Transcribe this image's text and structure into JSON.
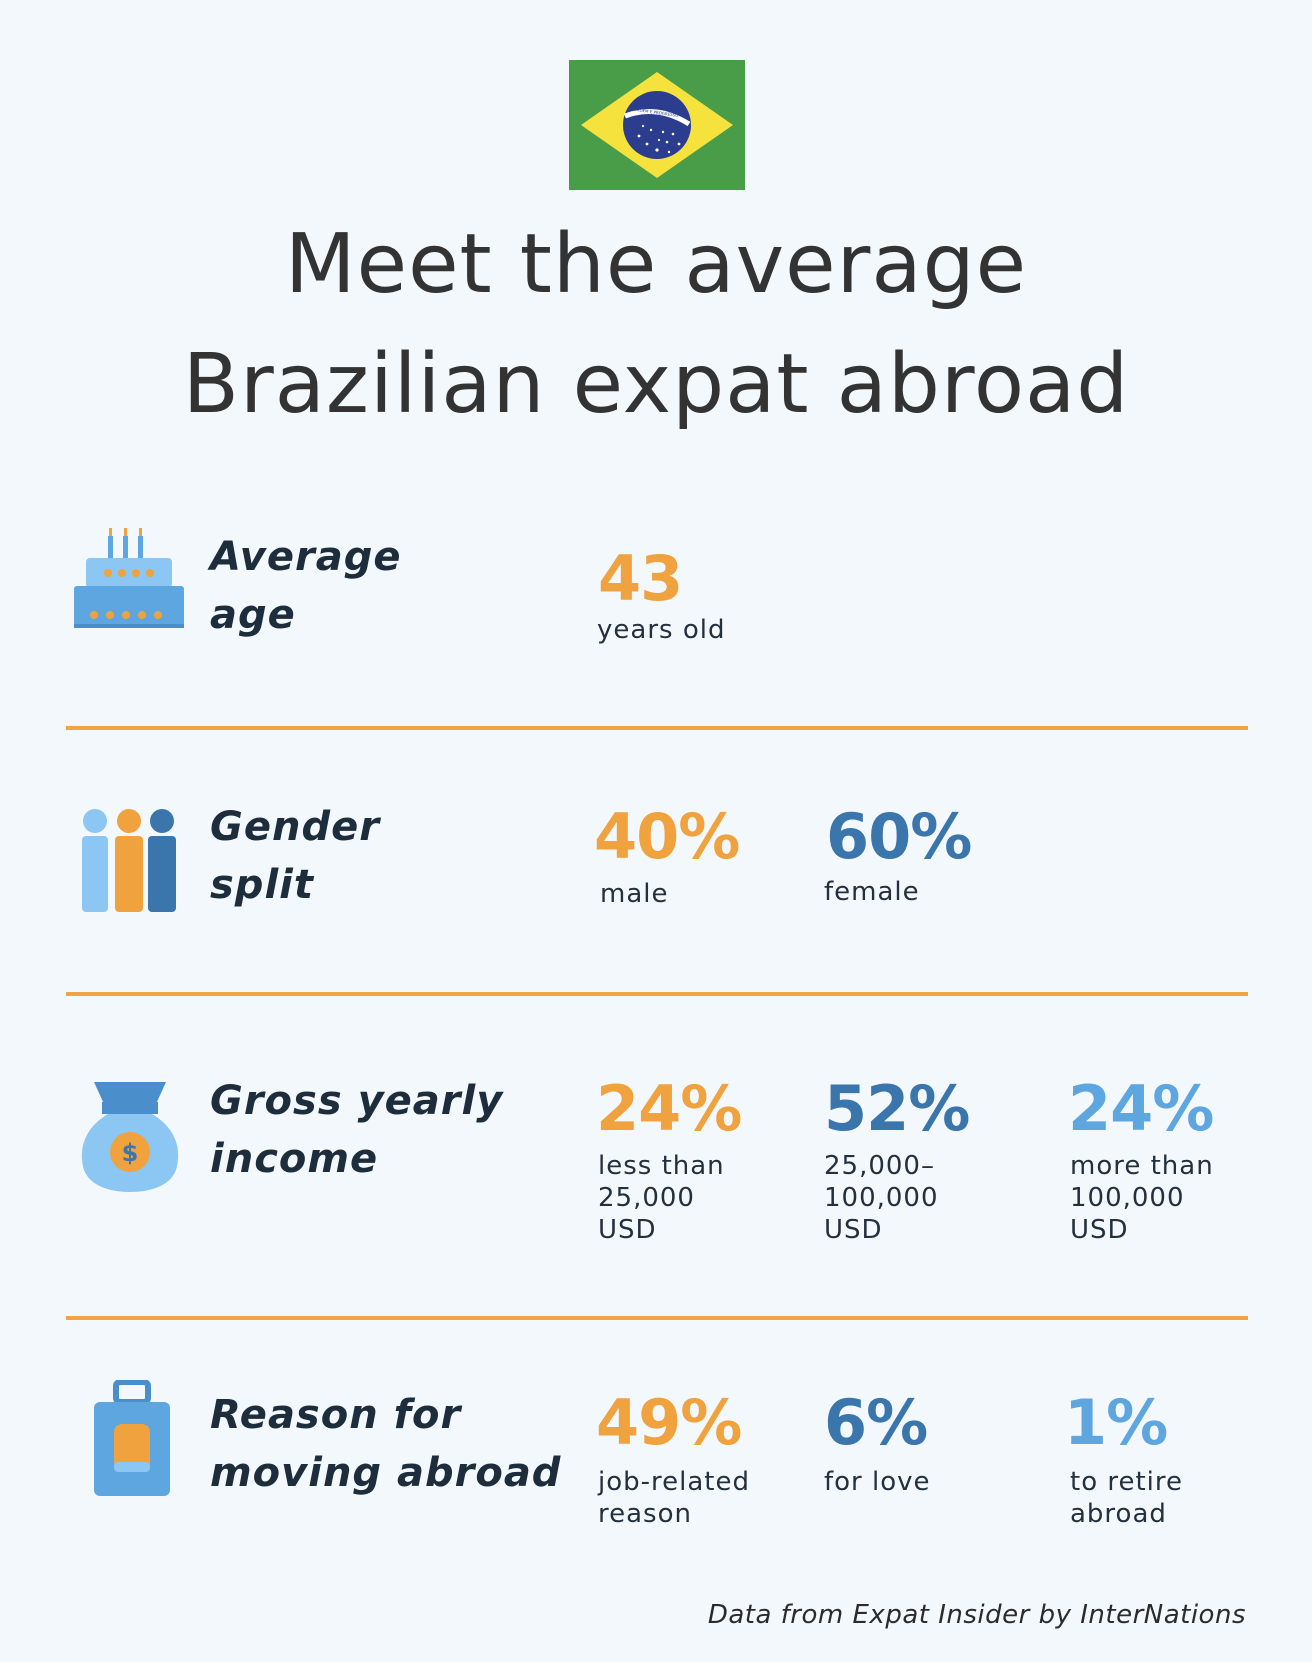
{
  "header": {
    "title_line1": "Meet the average",
    "title_line2": "Brazilian expat abroad",
    "flag": {
      "name": "brazil-flag",
      "banner_text": "ORDEM E PROGRESSO",
      "colors": {
        "green": "#4a9d48",
        "yellow": "#f5e23c",
        "blue": "#2c3c8e"
      }
    }
  },
  "sections": {
    "age": {
      "label_line1": "Average",
      "label_line2": "age",
      "icon": "birthday-cake-icon",
      "stats": [
        {
          "value": "43",
          "desc_lines": [
            "years old"
          ]
        }
      ]
    },
    "gender": {
      "label_line1": "Gender",
      "label_line2": "split",
      "icon": "people-icon",
      "stats": [
        {
          "value": "40%",
          "desc_lines": [
            "male"
          ]
        },
        {
          "value": "60%",
          "desc_lines": [
            "female"
          ]
        }
      ]
    },
    "income": {
      "label_line1": "Gross yearly",
      "label_line2": "income",
      "icon": "money-bag-icon",
      "stats": [
        {
          "value": "24%",
          "desc_lines": [
            "less than",
            "25,000",
            "USD"
          ]
        },
        {
          "value": "52%",
          "desc_lines": [
            "25,000–",
            "100,000",
            "USD"
          ]
        },
        {
          "value": "24%",
          "desc_lines": [
            "more than",
            "100,000",
            "USD"
          ]
        }
      ]
    },
    "reason": {
      "label_line1": "Reason for",
      "label_line2": "moving abroad",
      "icon": "suitcase-icon",
      "stats": [
        {
          "value": "49%",
          "desc_lines": [
            "job-related",
            "reason"
          ]
        },
        {
          "value": "6%",
          "desc_lines": [
            "for love"
          ]
        },
        {
          "value": "1%",
          "desc_lines": [
            "to retire",
            "abroad"
          ]
        }
      ]
    }
  },
  "colors": {
    "orange": "#f0a23e",
    "dark_blue": "#3a75ac",
    "light_blue": "#5ea6e0",
    "divider": "#f1a441",
    "background": "#f3f8fd"
  },
  "footer": {
    "source": "Data from Expat Insider by InterNations"
  }
}
